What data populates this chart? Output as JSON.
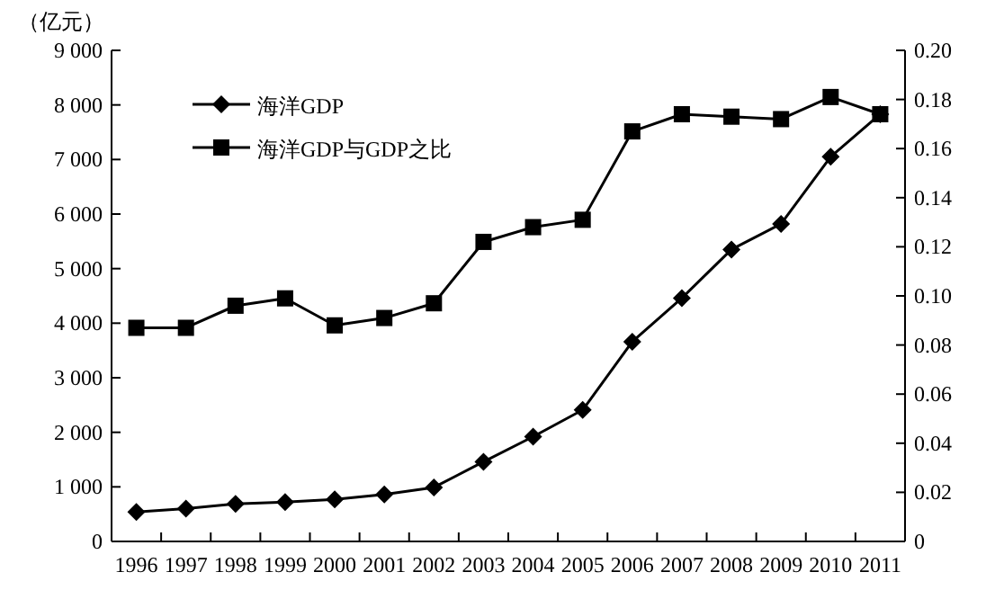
{
  "chart_data": {
    "type": "line",
    "ylabel": "（亿元）",
    "categories": [
      "1996",
      "1997",
      "1998",
      "1999",
      "2000",
      "2001",
      "2002",
      "2003",
      "2004",
      "2005",
      "2006",
      "2007",
      "2008",
      "2009",
      "2010",
      "2011"
    ],
    "series": [
      {
        "name": "海洋GDP",
        "color": "#000000",
        "marker": "diamond",
        "values": [
          540,
          600,
          690,
          720,
          770,
          860,
          990,
          1460,
          1920,
          2410,
          3660,
          4460,
          5350,
          5820,
          7050,
          7830
        ]
      },
      {
        "name": "海洋GDP与GDP之比",
        "color": "#000000",
        "marker": "square",
        "axis": "y2",
        "values": [
          0.087,
          0.087,
          0.096,
          0.099,
          0.088,
          0.091,
          0.097,
          0.122,
          0.128,
          0.131,
          0.167,
          0.174,
          0.173,
          0.172,
          0.181,
          0.174
        ]
      }
    ],
    "ylim": [
      0,
      9000
    ],
    "yticks": [
      0,
      {
        "value": 1000,
        "label": "1 000"
      },
      {
        "value": 2000,
        "label": "2 000"
      },
      {
        "value": 3000,
        "label": "3 000"
      },
      {
        "value": 4000,
        "label": "4 000"
      },
      {
        "value": 5000,
        "label": "5 000"
      },
      {
        "value": 6000,
        "label": "6 000"
      },
      {
        "value": 7000,
        "label": "7 000"
      },
      {
        "value": 8000,
        "label": "8 000"
      },
      {
        "value": 9000,
        "label": "9 000"
      }
    ],
    "y2lim": [
      0,
      0.2
    ],
    "y2ticks": [
      0,
      0.02,
      0.04,
      0.06,
      0.08,
      {
        "value": 0.1,
        "label": "0.10"
      },
      0.12,
      0.14,
      0.16,
      0.18,
      {
        "value": 0.2,
        "label": "0.20"
      }
    ],
    "legend": "top left"
  }
}
